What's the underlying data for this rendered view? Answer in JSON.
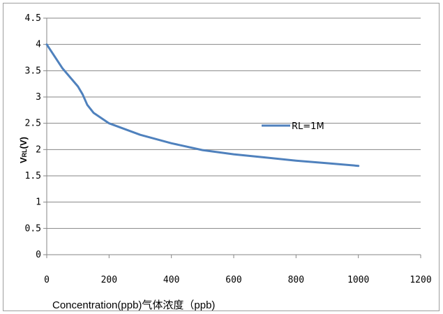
{
  "chart_data": {
    "type": "line",
    "title": "",
    "xlabel": "Concentration(ppb)气体浓度（ppb)",
    "ylabel": "V",
    "ylabel_sub": "RL",
    "ylabel_unit": "(V)",
    "xlim": [
      0,
      1200
    ],
    "ylim": [
      0,
      4.5
    ],
    "x_ticks": [
      "0",
      "200",
      "400",
      "600",
      "800",
      "1000",
      "1200"
    ],
    "y_ticks": [
      "0",
      "0.5",
      "1",
      "1.5",
      "2",
      "2.5",
      "3",
      "3.5",
      "4",
      "4.5"
    ],
    "grid": "horizontal",
    "legend": "right-center",
    "series": [
      {
        "name": "RL=1M",
        "color": "#4f81bd",
        "x": [
          0,
          50,
          100,
          115,
          130,
          150,
          200,
          300,
          400,
          500,
          600,
          700,
          800,
          900,
          1000
        ],
        "y": [
          4.0,
          3.55,
          3.2,
          3.05,
          2.85,
          2.7,
          2.5,
          2.28,
          2.12,
          1.99,
          1.91,
          1.85,
          1.79,
          1.74,
          1.69
        ]
      }
    ]
  }
}
